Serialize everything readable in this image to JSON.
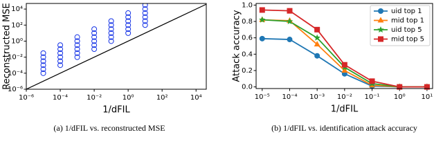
{
  "chart_data": [
    {
      "type": "scatter",
      "xlabel": "1/dFIL",
      "ylabel": "Reconstructed MSE",
      "caption": "(a) 1/dFIL vs. reconstructed MSE",
      "log_x": true,
      "log_y": true,
      "color": "#1533e6",
      "identity_line": true,
      "xlim": [
        1e-06,
        40000
      ],
      "ylim": [
        1e-06,
        50000
      ],
      "xticks": [
        {
          "value": 1e-06,
          "label": "10⁻⁶"
        },
        {
          "value": 0.0001,
          "label": "10⁻⁴"
        },
        {
          "value": 0.01,
          "label": "10⁻²"
        },
        {
          "value": 1,
          "label": "10⁰"
        },
        {
          "value": 100,
          "label": "10²"
        },
        {
          "value": 10000,
          "label": "10⁴"
        }
      ],
      "yticks": [
        {
          "value": 1e-06,
          "label": "10⁻⁶"
        },
        {
          "value": 0.0001,
          "label": "10⁻⁴"
        },
        {
          "value": 0.01,
          "label": "10⁻²"
        },
        {
          "value": 1,
          "label": "10⁰"
        },
        {
          "value": 100,
          "label": "10²"
        },
        {
          "value": 10000,
          "label": "10⁴"
        }
      ],
      "x": [
        1e-05,
        1e-05,
        1e-05,
        1e-05,
        1e-05,
        1e-05,
        0.0001,
        0.0001,
        0.0001,
        0.0001,
        0.0001,
        0.0001,
        0.001,
        0.001,
        0.001,
        0.001,
        0.001,
        0.001,
        0.01,
        0.01,
        0.01,
        0.01,
        0.01,
        0.01,
        0.1,
        0.1,
        0.1,
        0.1,
        0.1,
        0.1,
        1,
        1,
        1,
        1,
        1,
        1,
        10,
        10,
        10,
        10,
        10,
        10
      ],
      "y": [
        0.0001,
        0.000316,
        0.001,
        0.00316,
        0.01,
        0.0316,
        0.001,
        0.00316,
        0.01,
        0.0316,
        0.1,
        0.316,
        0.01,
        0.0316,
        0.1,
        0.316,
        1,
        3.16,
        0.1,
        0.316,
        1,
        3.16,
        10,
        31.6,
        1,
        3.16,
        10,
        31.6,
        100,
        316,
        10,
        31.6,
        100,
        316,
        1000,
        3160,
        100,
        316,
        1000,
        3160,
        10000,
        31600
      ]
    },
    {
      "type": "line",
      "xlabel": "1/dFIL",
      "ylabel": "Attack accuracy",
      "caption": "(b) 1/dFIL vs. identification attack accuracy",
      "log_x": true,
      "legend": "upper right",
      "xlim": [
        6e-06,
        16
      ],
      "ylim": [
        -0.02,
        1.02
      ],
      "xticks": [
        {
          "value": 1e-05,
          "label": "10⁻⁵"
        },
        {
          "value": 0.0001,
          "label": "10⁻⁴"
        },
        {
          "value": 0.001,
          "label": "10⁻³"
        },
        {
          "value": 0.01,
          "label": "10⁻²"
        },
        {
          "value": 0.1,
          "label": "10⁻¹"
        },
        {
          "value": 1,
          "label": "10⁰"
        },
        {
          "value": 10,
          "label": "10¹"
        }
      ],
      "yticks": [
        {
          "value": 0,
          "label": "0.0"
        },
        {
          "value": 0.2,
          "label": "0.2"
        },
        {
          "value": 0.4,
          "label": "0.4"
        },
        {
          "value": 0.6,
          "label": "0.6"
        },
        {
          "value": 0.8,
          "label": "0.8"
        },
        {
          "value": 1,
          "label": "1.0"
        }
      ],
      "x": [
        1e-05,
        0.0001,
        0.001,
        0.01,
        0.1,
        1,
        10
      ],
      "series": [
        {
          "name": "uid top 1",
          "color": "#1f77b4",
          "marker": "circle",
          "values": [
            0.59,
            0.58,
            0.38,
            0.16,
            0.01,
            0.0,
            0.0
          ]
        },
        {
          "name": "mid top 1",
          "color": "#ff7f0e",
          "marker": "triangle",
          "values": [
            0.82,
            0.81,
            0.52,
            0.2,
            0.02,
            0.0,
            0.0
          ]
        },
        {
          "name": "uid top 5",
          "color": "#2ca02c",
          "marker": "star",
          "values": [
            0.82,
            0.8,
            0.6,
            0.24,
            0.04,
            0.0,
            0.0
          ]
        },
        {
          "name": "mid top 5",
          "color": "#d62728",
          "marker": "square",
          "values": [
            0.94,
            0.93,
            0.7,
            0.27,
            0.07,
            0.0,
            0.0
          ]
        }
      ]
    }
  ]
}
